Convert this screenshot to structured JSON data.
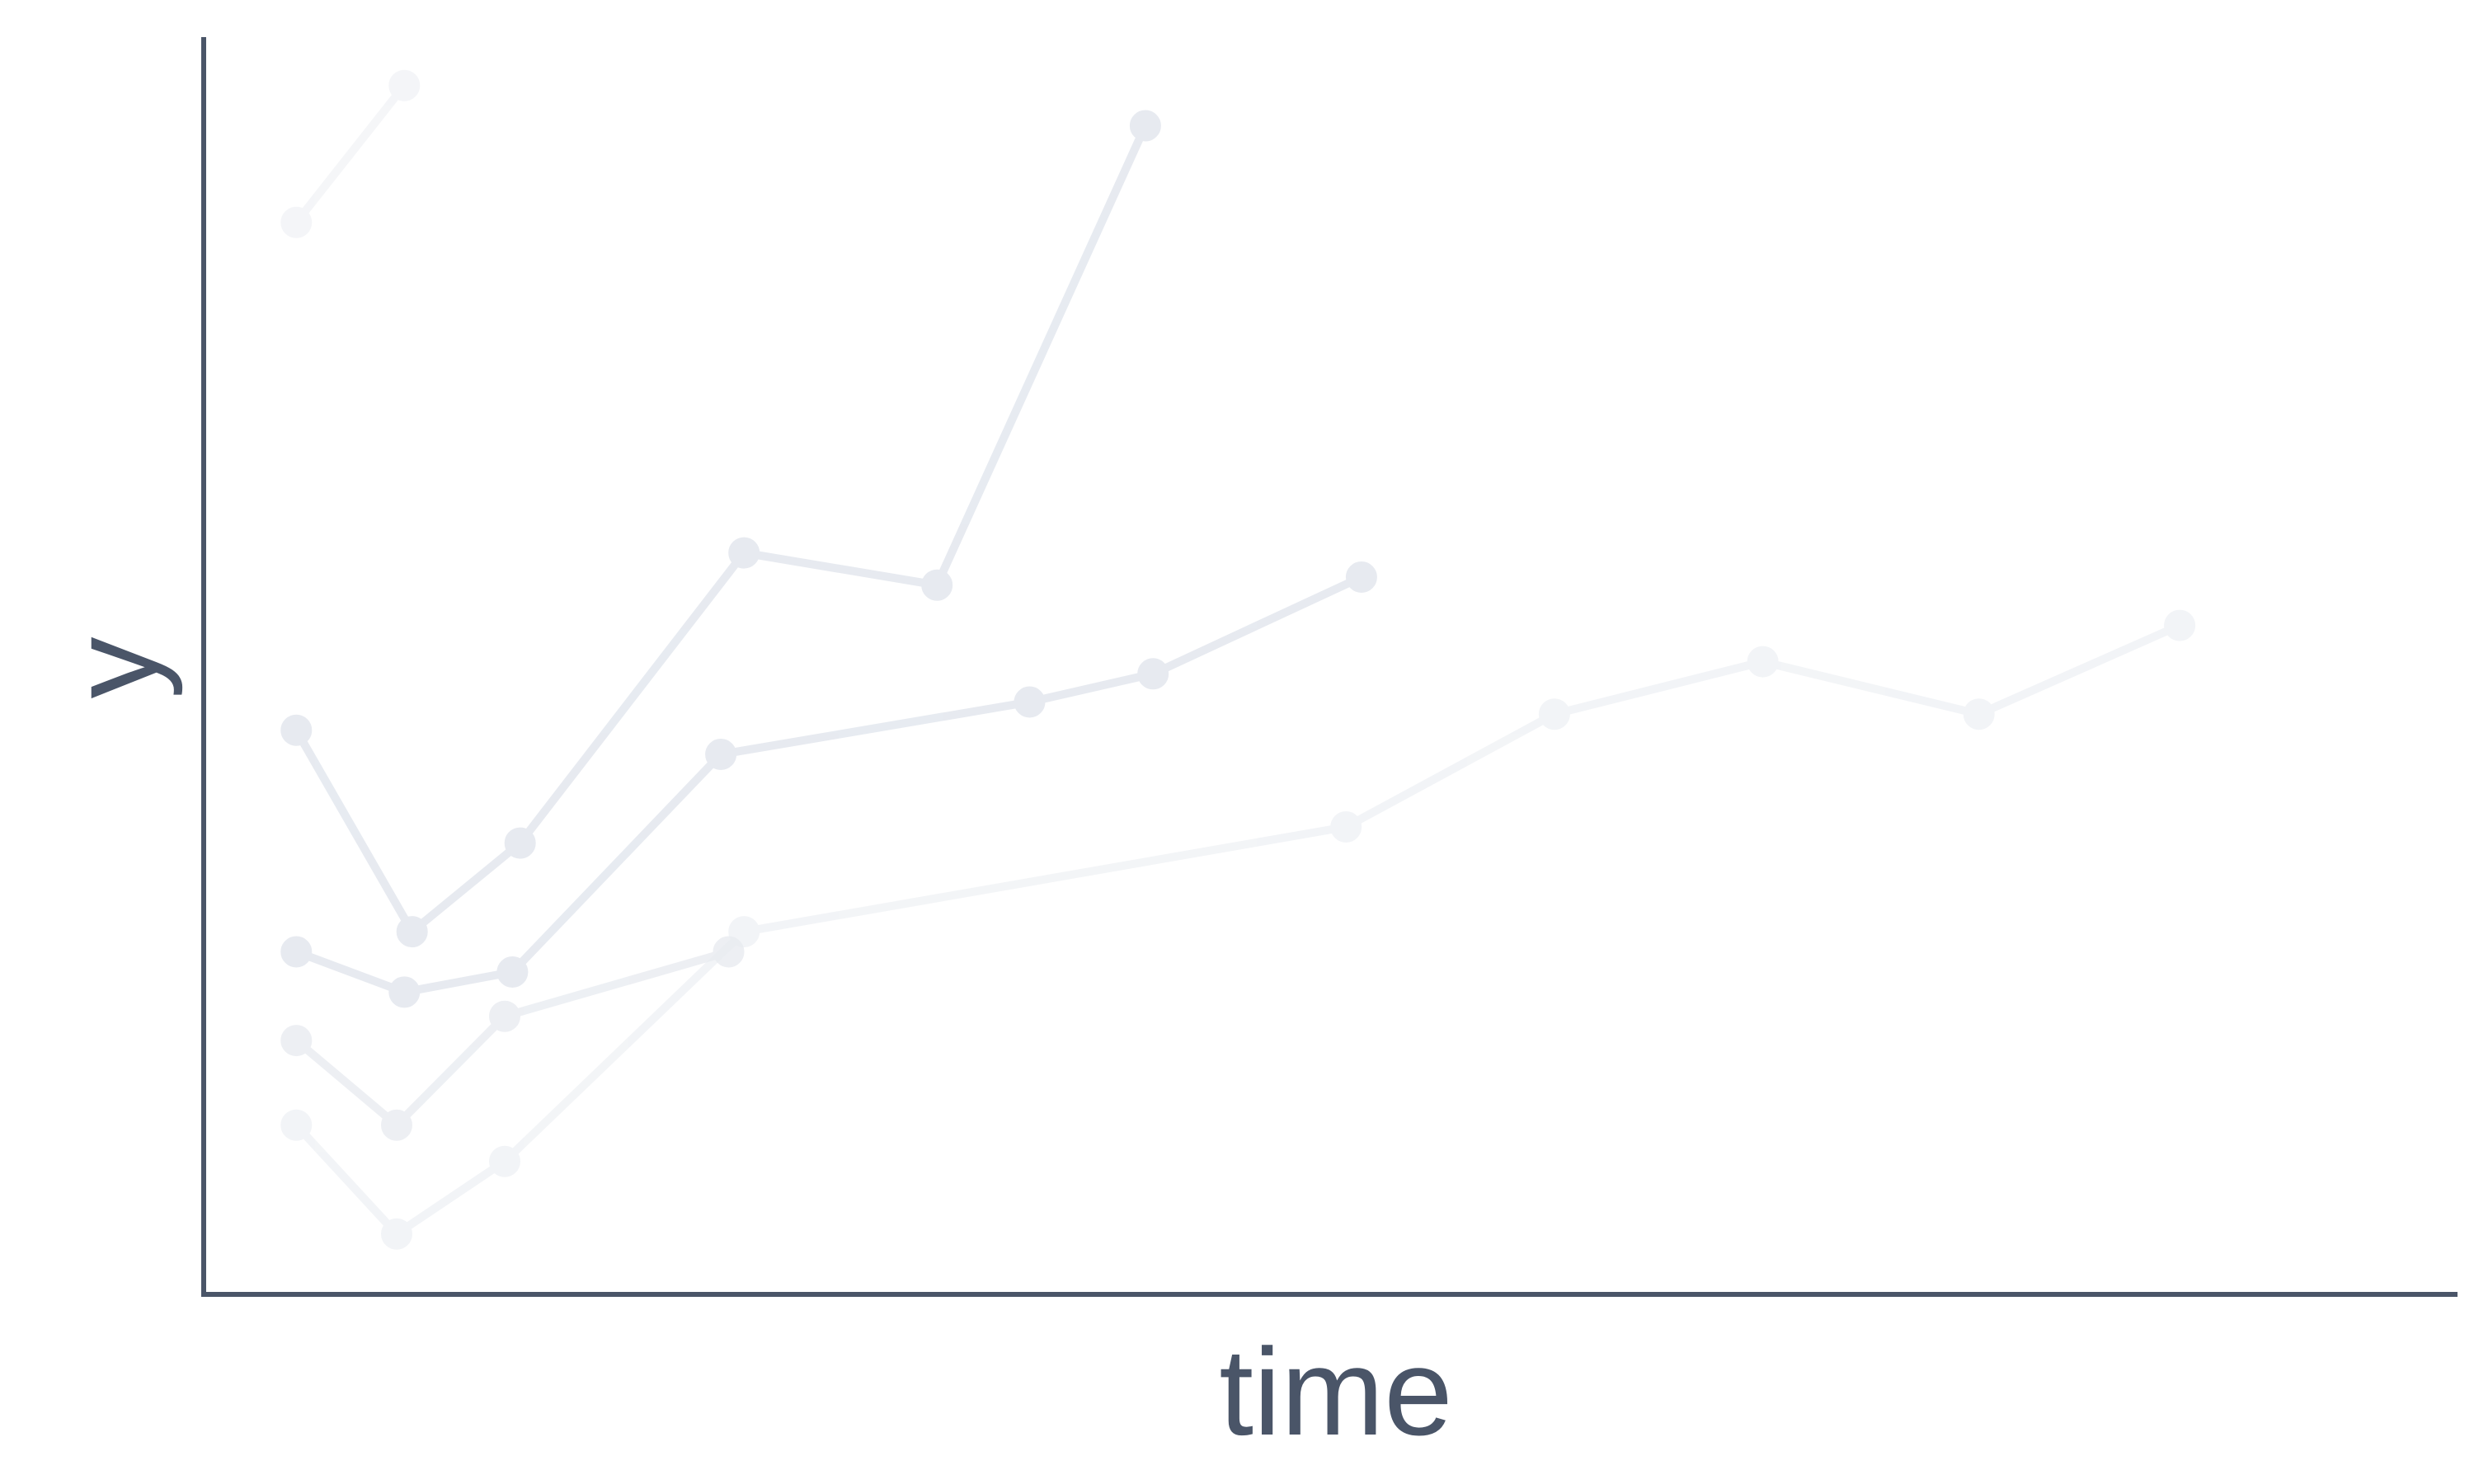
{
  "chart_data": {
    "type": "line",
    "title": "",
    "xlabel": "time",
    "ylabel": "y",
    "xlim": [
      0,
      29.2
    ],
    "ylim": [
      0,
      15.6
    ],
    "grid": false,
    "legend": "none",
    "tick_labels": false,
    "axis_color": "#4a5568",
    "series": [
      {
        "color": "#e8ebf0",
        "opacity": 0.45,
        "x": [
          1.2,
          2.6
        ],
        "y": [
          13.3,
          15.0
        ]
      },
      {
        "color": "#e3e7ee",
        "opacity": 0.85,
        "x": [
          1.2,
          2.7,
          4.1,
          7.0,
          9.5,
          12.2
        ],
        "y": [
          7.0,
          4.5,
          5.6,
          9.2,
          8.8,
          14.5
        ]
      },
      {
        "color": "#e3e7ee",
        "opacity": 0.85,
        "x": [
          1.2,
          2.6,
          4.0,
          6.7,
          10.7,
          12.3,
          15.0
        ],
        "y": [
          4.25,
          3.75,
          4.0,
          6.7,
          7.35,
          7.7,
          8.9
        ]
      },
      {
        "color": "#e6e9ef",
        "opacity": 0.7,
        "x": [
          1.2,
          2.5,
          3.9,
          6.8
        ],
        "y": [
          3.15,
          2.1,
          3.45,
          4.25
        ]
      },
      {
        "color": "#e9ecf1",
        "opacity": 0.55,
        "x": [
          1.2,
          2.5,
          3.9,
          7.0,
          14.8,
          17.5,
          20.2,
          23.0,
          25.6
        ],
        "y": [
          2.1,
          0.75,
          1.65,
          4.5,
          5.8,
          7.2,
          7.85,
          7.2,
          8.3
        ]
      }
    ]
  }
}
